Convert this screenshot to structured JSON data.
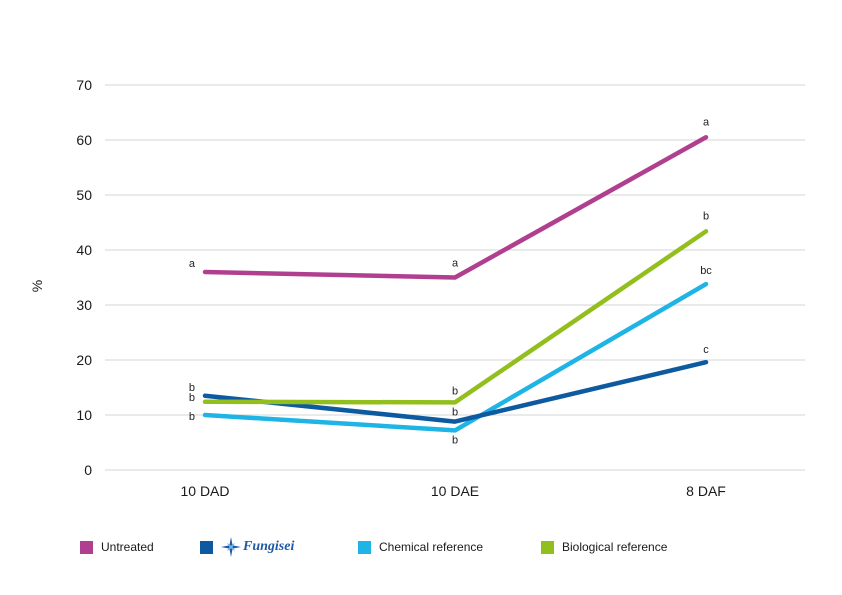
{
  "chart_data": {
    "type": "line",
    "categories": [
      "10 DAD",
      "10 DAE",
      "8 DAF"
    ],
    "ylabel": "%",
    "ylim": [
      0,
      70
    ],
    "yticks": [
      0,
      10,
      20,
      30,
      40,
      50,
      60,
      70
    ],
    "grid": true,
    "legend_position": "bottom",
    "series": [
      {
        "name": "Untreated",
        "color": "#b0408f",
        "values": [
          36,
          35,
          60.5
        ],
        "labels": [
          "a",
          "a",
          "a"
        ]
      },
      {
        "name": "Fungisei",
        "color": "#0d5aa0",
        "values": [
          13.5,
          8.8,
          19.6
        ],
        "labels": [
          "b",
          "b",
          "c"
        ],
        "logo": true
      },
      {
        "name": "Chemical reference",
        "color": "#1fb4e6",
        "values": [
          10,
          7.2,
          33.8
        ],
        "labels": [
          "b",
          "b",
          "bc"
        ]
      },
      {
        "name": "Biological reference",
        "color": "#92bf1e",
        "values": [
          12.4,
          12.3,
          43.4
        ],
        "labels": [
          "b",
          "b",
          "b"
        ]
      }
    ]
  }
}
